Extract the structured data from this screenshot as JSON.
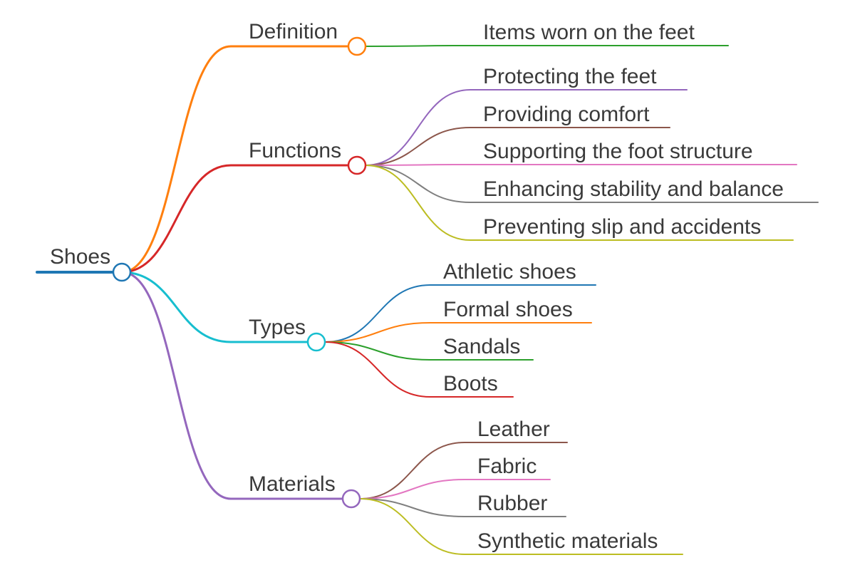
{
  "root": {
    "label": "Shoes",
    "color": "#1f77b4"
  },
  "branches": [
    {
      "id": "definition",
      "label": "Definition",
      "color": "#ff7f0e",
      "children": [
        {
          "label": "Items worn on the feet",
          "color": "#2ca02c"
        }
      ]
    },
    {
      "id": "functions",
      "label": "Functions",
      "color": "#d62728",
      "children": [
        {
          "label": "Protecting the feet",
          "color": "#9467bd"
        },
        {
          "label": "Providing comfort",
          "color": "#8c564b"
        },
        {
          "label": "Supporting the foot structure",
          "color": "#e377c2"
        },
        {
          "label": "Enhancing stability and balance",
          "color": "#7f7f7f"
        },
        {
          "label": "Preventing slip and accidents",
          "color": "#bcbd22"
        }
      ]
    },
    {
      "id": "types",
      "label": "Types",
      "color": "#17becf",
      "children": [
        {
          "label": "Athletic shoes",
          "color": "#1f77b4"
        },
        {
          "label": "Formal shoes",
          "color": "#ff7f0e"
        },
        {
          "label": "Sandals",
          "color": "#2ca02c"
        },
        {
          "label": "Boots",
          "color": "#d62728"
        }
      ]
    },
    {
      "id": "materials",
      "label": "Materials",
      "color": "#9467bd",
      "children": [
        {
          "label": "Leather",
          "color": "#8c564b"
        },
        {
          "label": "Fabric",
          "color": "#e377c2"
        },
        {
          "label": "Rubber",
          "color": "#7f7f7f"
        },
        {
          "label": "Synthetic materials",
          "color": "#bcbd22"
        }
      ]
    }
  ]
}
